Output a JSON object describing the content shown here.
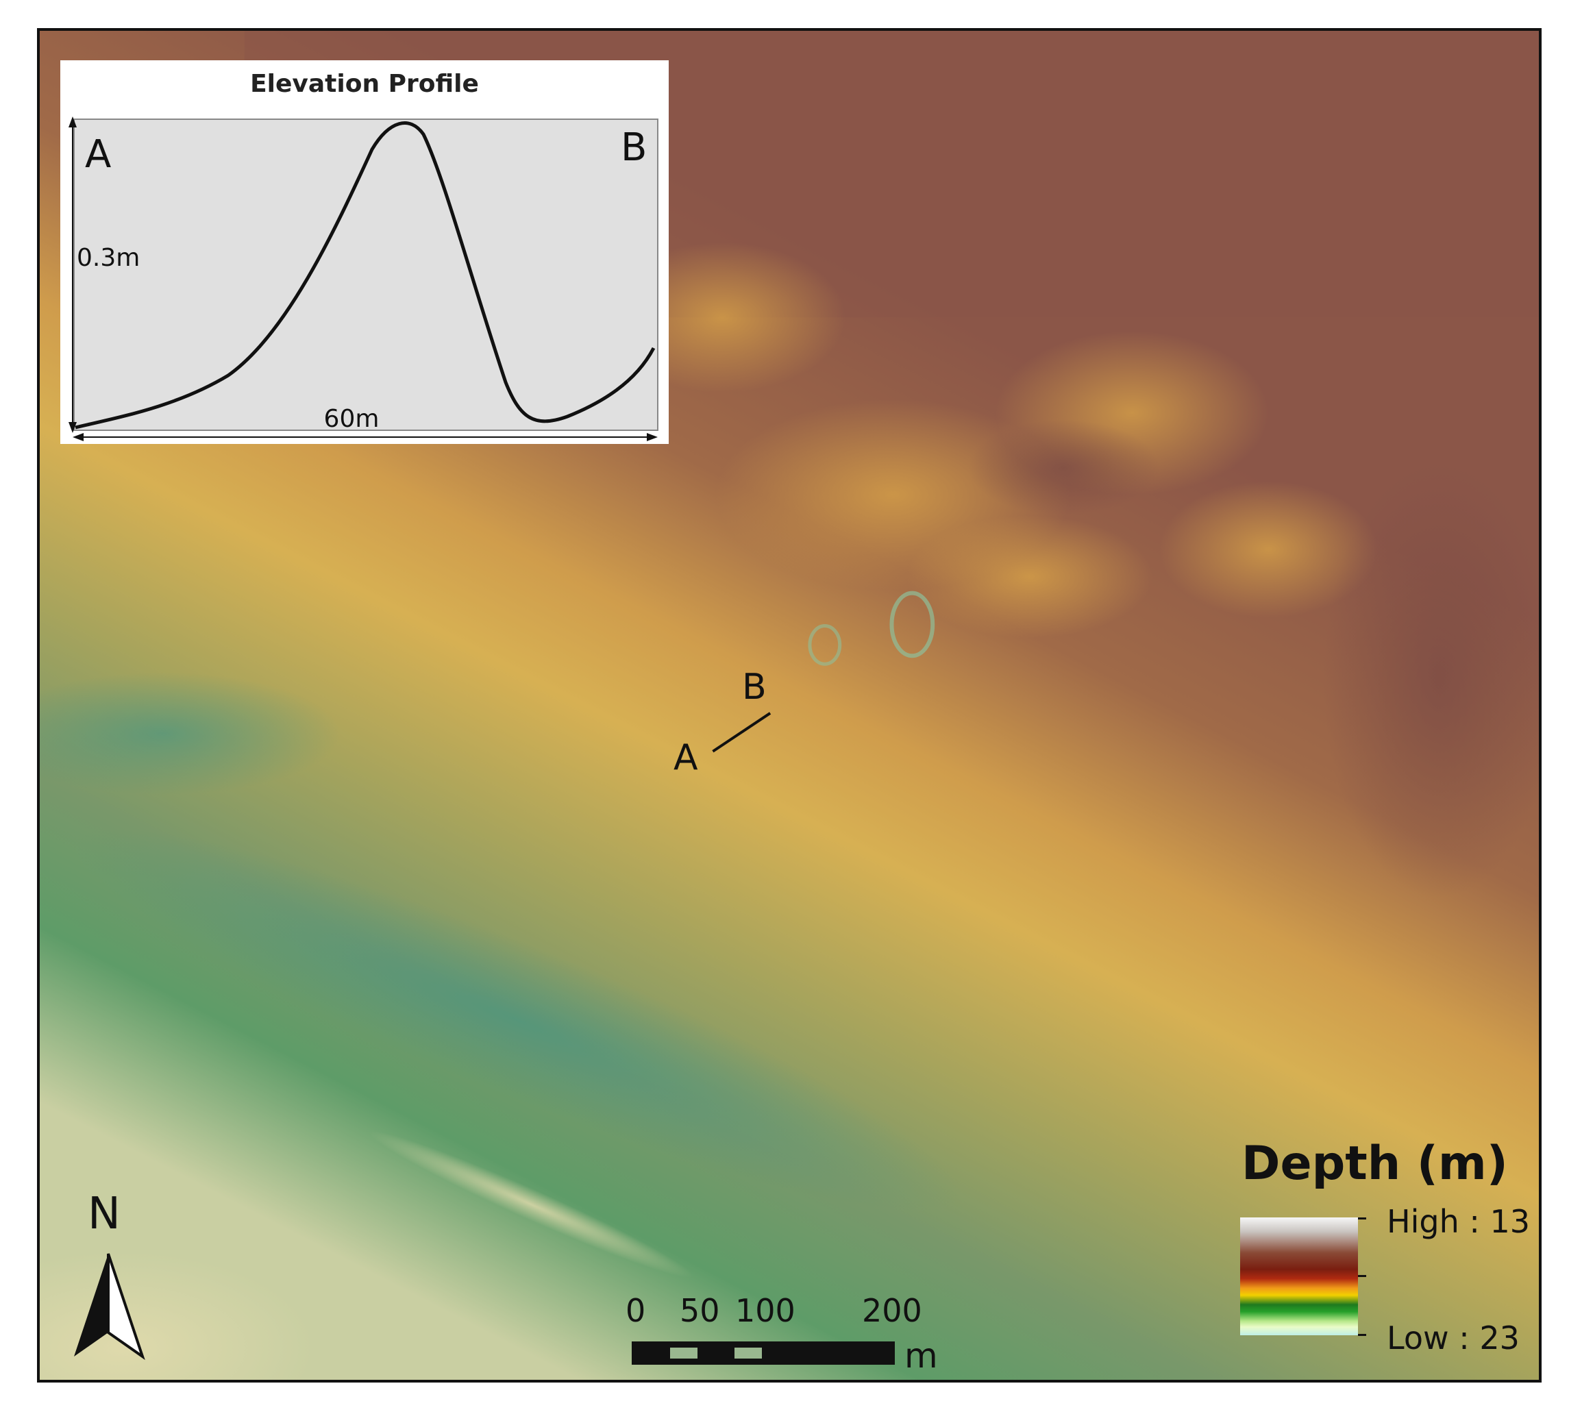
{
  "inset": {
    "title": "Elevation Profile",
    "label_start": "A",
    "label_end": "B",
    "vertical_scale": "0.3m",
    "horizontal_scale": "60m"
  },
  "transect": {
    "label_start": "A",
    "label_end": "B"
  },
  "north_arrow": {
    "letter": "N"
  },
  "scale_bar": {
    "ticks": [
      "0",
      "50",
      "100",
      "200"
    ],
    "unit": "m"
  },
  "legend": {
    "title": "Depth (m)",
    "high_label": "High : 13",
    "low_label": "Low : 23"
  },
  "colors": {
    "shallow": "#8f5a4a",
    "mid": "#d6ad4e",
    "deep": "#5f9e62",
    "deepest": "#d8d7b0"
  }
}
